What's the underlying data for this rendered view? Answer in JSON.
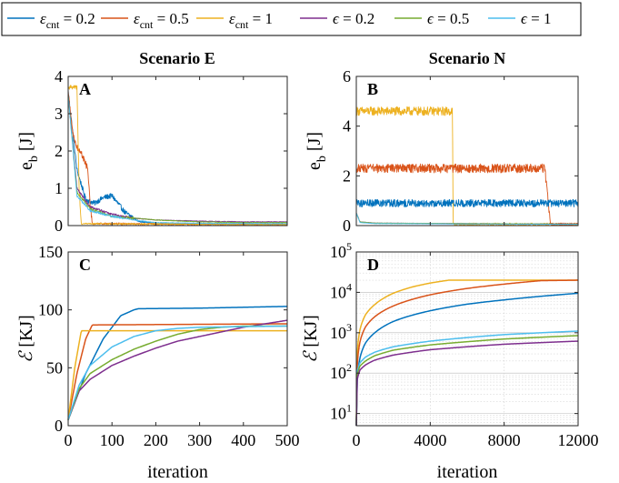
{
  "colors": {
    "eps_cnt_02": "#0072BD",
    "eps_cnt_05": "#D95319",
    "eps_cnt_1": "#EDB120",
    "eps_02": "#7E2F8E",
    "eps_05": "#77AC30",
    "eps_1": "#4DBEEE"
  },
  "legend": {
    "placement": "top",
    "items": [
      {
        "key": "eps_cnt_02",
        "sym": "ε",
        "sub": "cnt",
        "rest": " = 0.2"
      },
      {
        "key": "eps_cnt_05",
        "sym": "ε",
        "sub": "cnt",
        "rest": " = 0.5"
      },
      {
        "key": "eps_cnt_1",
        "sym": "ε",
        "sub": "cnt",
        "rest": " = 1"
      },
      {
        "key": "eps_02",
        "sym": "ϵ",
        "sub": "",
        "rest": " = 0.2"
      },
      {
        "key": "eps_05",
        "sym": "ϵ",
        "sub": "",
        "rest": " = 0.5"
      },
      {
        "key": "eps_1",
        "sym": "ϵ",
        "sub": "",
        "rest": " = 1"
      }
    ]
  },
  "column_titles": [
    "Scenario E",
    "Scenario N"
  ],
  "chart_data": [
    {
      "id": "A",
      "panel_label": "A",
      "type": "line",
      "ylabel_main": "e",
      "ylabel_sub": "b",
      "ylabel_unit": " [J]",
      "xlim": [
        0,
        500
      ],
      "ylim": [
        0,
        4
      ],
      "xticks": [
        0,
        100,
        200,
        300,
        400,
        500
      ],
      "show_xticklabels": false,
      "yticks": [
        0,
        1,
        2,
        3,
        4
      ],
      "yticklabels": [
        "0",
        "1",
        "2",
        "3",
        "4"
      ],
      "grid": false,
      "series": [
        {
          "key": "eps_cnt_02",
          "points": [
            [
              0,
              3.6
            ],
            [
              20,
              1.5
            ],
            [
              40,
              0.7
            ],
            [
              60,
              0.6
            ],
            [
              80,
              0.75
            ],
            [
              100,
              0.8
            ],
            [
              110,
              0.65
            ],
            [
              130,
              0.35
            ],
            [
              160,
              0.12
            ],
            [
              200,
              0.05
            ],
            [
              500,
              0.04
            ]
          ],
          "noise": 0.07
        },
        {
          "key": "eps_cnt_05",
          "points": [
            [
              0,
              3.6
            ],
            [
              10,
              2.5
            ],
            [
              20,
              2.1
            ],
            [
              30,
              1.95
            ],
            [
              45,
              1.5
            ],
            [
              50,
              0.6
            ],
            [
              55,
              0.05
            ],
            [
              500,
              0.03
            ]
          ],
          "noise": 0.08
        },
        {
          "key": "eps_cnt_1",
          "points": [
            [
              0,
              3.7
            ],
            [
              20,
              3.7
            ],
            [
              25,
              1.0
            ],
            [
              30,
              0.05
            ],
            [
              500,
              0.03
            ]
          ],
          "noise": 0.06
        },
        {
          "key": "eps_02",
          "points": [
            [
              0,
              3.5
            ],
            [
              20,
              1.0
            ],
            [
              50,
              0.5
            ],
            [
              100,
              0.3
            ],
            [
              150,
              0.2
            ],
            [
              200,
              0.15
            ],
            [
              300,
              0.12
            ],
            [
              400,
              0.1
            ],
            [
              500,
              0.1
            ]
          ],
          "noise": 0.03
        },
        {
          "key": "eps_05",
          "points": [
            [
              0,
              3.5
            ],
            [
              20,
              0.9
            ],
            [
              50,
              0.45
            ],
            [
              100,
              0.25
            ],
            [
              150,
              0.2
            ],
            [
              200,
              0.15
            ],
            [
              300,
              0.1
            ],
            [
              400,
              0.08
            ],
            [
              500,
              0.08
            ]
          ],
          "noise": 0.03
        },
        {
          "key": "eps_1",
          "points": [
            [
              0,
              3.5
            ],
            [
              20,
              0.8
            ],
            [
              50,
              0.4
            ],
            [
              100,
              0.25
            ],
            [
              150,
              0.15
            ],
            [
              200,
              0.08
            ],
            [
              300,
              0.06
            ],
            [
              500,
              0.05
            ]
          ],
          "noise": 0.03
        }
      ]
    },
    {
      "id": "B",
      "panel_label": "B",
      "type": "line",
      "ylabel_main": "e",
      "ylabel_sub": "b",
      "ylabel_unit": " [J]",
      "xlim": [
        0,
        12000
      ],
      "ylim": [
        0,
        6
      ],
      "xticks": [
        0,
        4000,
        8000,
        12000
      ],
      "show_xticklabels": false,
      "yticks": [
        0,
        2,
        4,
        6
      ],
      "yticklabels": [
        "0",
        "2",
        "4",
        "6"
      ],
      "grid": false,
      "series": [
        {
          "key": "eps_cnt_1",
          "points": [
            [
              0,
              4.6
            ],
            [
              5200,
              4.6
            ],
            [
              5240,
              0.05
            ],
            [
              12000,
              0.05
            ]
          ],
          "noise": 0.18
        },
        {
          "key": "eps_cnt_05",
          "points": [
            [
              0,
              2.3
            ],
            [
              10200,
              2.3
            ],
            [
              10500,
              0.05
            ],
            [
              12000,
              0.05
            ]
          ],
          "noise": 0.18
        },
        {
          "key": "eps_cnt_02",
          "points": [
            [
              0,
              0.9
            ],
            [
              12000,
              0.9
            ]
          ],
          "noise": 0.15
        },
        {
          "key": "eps_02",
          "points": [
            [
              0,
              0.5
            ],
            [
              200,
              0.15
            ],
            [
              1000,
              0.1
            ],
            [
              12000,
              0.06
            ]
          ],
          "noise": 0.02
        },
        {
          "key": "eps_05",
          "points": [
            [
              0,
              0.5
            ],
            [
              200,
              0.15
            ],
            [
              1000,
              0.1
            ],
            [
              12000,
              0.06
            ]
          ],
          "noise": 0.02
        },
        {
          "key": "eps_1",
          "points": [
            [
              0,
              0.5
            ],
            [
              200,
              0.12
            ],
            [
              1000,
              0.08
            ],
            [
              12000,
              0.05
            ]
          ],
          "noise": 0.02
        }
      ]
    },
    {
      "id": "C",
      "panel_label": "C",
      "type": "line",
      "ylabel_main": "ℰ",
      "ylabel_sub": "",
      "ylabel_unit": " [KJ]",
      "xlabel": "iteration",
      "xlim": [
        0,
        500
      ],
      "ylim": [
        0,
        150
      ],
      "xticks": [
        0,
        100,
        200,
        300,
        400,
        500
      ],
      "xticklabels": [
        "0",
        "100",
        "200",
        "300",
        "400",
        "500"
      ],
      "show_xticklabels": true,
      "yticks": [
        0,
        50,
        100,
        150
      ],
      "yticklabels": [
        "0",
        "50",
        "100",
        "150"
      ],
      "grid": false,
      "series": [
        {
          "key": "eps_cnt_02",
          "points": [
            [
              0,
              5
            ],
            [
              40,
              45
            ],
            [
              80,
              75
            ],
            [
              120,
              95
            ],
            [
              150,
              100
            ],
            [
              160,
              101
            ],
            [
              300,
              101.5
            ],
            [
              500,
              103
            ]
          ]
        },
        {
          "key": "eps_cnt_05",
          "points": [
            [
              0,
              5
            ],
            [
              20,
              45
            ],
            [
              40,
              75
            ],
            [
              55,
              87
            ],
            [
              500,
              88
            ]
          ]
        },
        {
          "key": "eps_cnt_1",
          "points": [
            [
              0,
              5
            ],
            [
              15,
              50
            ],
            [
              30,
              82
            ],
            [
              500,
              82
            ]
          ]
        },
        {
          "key": "eps_02",
          "points": [
            [
              0,
              5
            ],
            [
              25,
              30
            ],
            [
              50,
              40
            ],
            [
              100,
              52
            ],
            [
              150,
              60
            ],
            [
              200,
              67
            ],
            [
              250,
              73
            ],
            [
              300,
              77
            ],
            [
              350,
              81
            ],
            [
              400,
              85
            ],
            [
              450,
              88
            ],
            [
              500,
              91
            ]
          ]
        },
        {
          "key": "eps_05",
          "points": [
            [
              0,
              5
            ],
            [
              25,
              32
            ],
            [
              50,
              45
            ],
            [
              100,
              57
            ],
            [
              150,
              66
            ],
            [
              200,
              73
            ],
            [
              250,
              79
            ],
            [
              300,
              83
            ],
            [
              350,
              85
            ],
            [
              400,
              86
            ],
            [
              500,
              86
            ]
          ]
        },
        {
          "key": "eps_1",
          "points": [
            [
              0,
              5
            ],
            [
              25,
              35
            ],
            [
              50,
              52
            ],
            [
              100,
              68
            ],
            [
              150,
              77
            ],
            [
              200,
              82
            ],
            [
              250,
              84
            ],
            [
              300,
              85
            ],
            [
              500,
              86
            ]
          ]
        }
      ]
    },
    {
      "id": "D",
      "panel_label": "D",
      "type": "line",
      "ylabel_main": "ℰ",
      "ylabel_sub": "",
      "ylabel_unit": " [KJ]",
      "xlabel": "iteration",
      "xlim": [
        0,
        12000
      ],
      "ylim": [
        5,
        100000
      ],
      "yscale": "log",
      "xticks": [
        0,
        4000,
        8000,
        12000
      ],
      "xticklabels": [
        "0",
        "4000",
        "8000",
        "12000"
      ],
      "show_xticklabels": true,
      "yticks": [
        10,
        100,
        1000,
        10000,
        100000
      ],
      "ytick_exponents": [
        "1",
        "2",
        "3",
        "4",
        "5"
      ],
      "grid": true,
      "series": [
        {
          "key": "eps_cnt_1",
          "points": [
            [
              0,
              5
            ],
            [
              50,
              300
            ],
            [
              200,
              1200
            ],
            [
              500,
              2800
            ],
            [
              1000,
              5000
            ],
            [
              2000,
              9500
            ],
            [
              3000,
              13500
            ],
            [
              4000,
              17000
            ],
            [
              5000,
              20000
            ],
            [
              12000,
              20000
            ]
          ]
        },
        {
          "key": "eps_cnt_05",
          "points": [
            [
              0,
              5
            ],
            [
              50,
              150
            ],
            [
              200,
              600
            ],
            [
              500,
              1400
            ],
            [
              1000,
              2500
            ],
            [
              2000,
              4600
            ],
            [
              4000,
              8700
            ],
            [
              6000,
              12500
            ],
            [
              8000,
              16000
            ],
            [
              10000,
              19500
            ],
            [
              12000,
              20000
            ]
          ]
        },
        {
          "key": "eps_cnt_02",
          "points": [
            [
              0,
              5
            ],
            [
              50,
              60
            ],
            [
              200,
              240
            ],
            [
              500,
              560
            ],
            [
              1000,
              1000
            ],
            [
              2000,
              1900
            ],
            [
              4000,
              3500
            ],
            [
              6000,
              5100
            ],
            [
              8000,
              6500
            ],
            [
              10000,
              8000
            ],
            [
              12000,
              9500
            ]
          ]
        },
        {
          "key": "eps_1",
          "points": [
            [
              0,
              5
            ],
            [
              20,
              100
            ],
            [
              200,
              180
            ],
            [
              500,
              250
            ],
            [
              1000,
              330
            ],
            [
              2000,
              450
            ],
            [
              4000,
              620
            ],
            [
              8000,
              900
            ],
            [
              12000,
              1100
            ]
          ]
        },
        {
          "key": "eps_05",
          "points": [
            [
              0,
              5
            ],
            [
              20,
              80
            ],
            [
              200,
              150
            ],
            [
              500,
              200
            ],
            [
              1000,
              270
            ],
            [
              2000,
              370
            ],
            [
              4000,
              500
            ],
            [
              8000,
              700
            ],
            [
              12000,
              850
            ]
          ]
        },
        {
          "key": "eps_02",
          "points": [
            [
              0,
              5
            ],
            [
              20,
              60
            ],
            [
              200,
              120
            ],
            [
              500,
              160
            ],
            [
              1000,
              210
            ],
            [
              2000,
              280
            ],
            [
              4000,
              380
            ],
            [
              8000,
              520
            ],
            [
              12000,
              620
            ]
          ]
        }
      ]
    }
  ]
}
